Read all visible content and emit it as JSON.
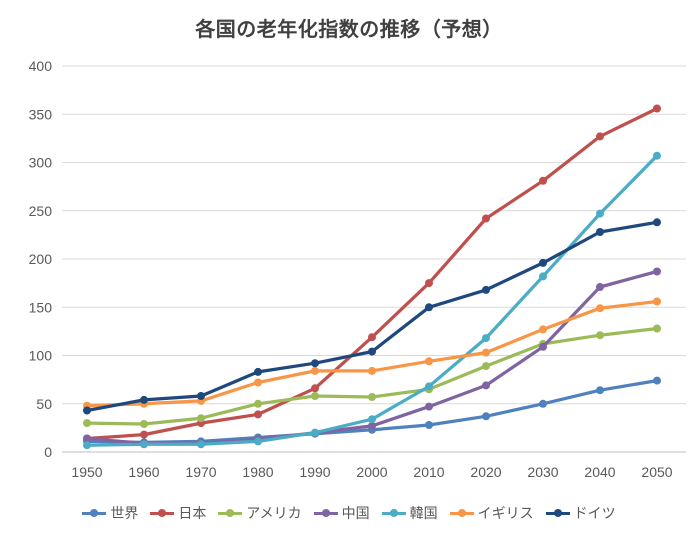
{
  "chart_data": {
    "type": "line",
    "title": "各国の老年化指数の推移（予想）",
    "x": [
      1950,
      1960,
      1970,
      1980,
      1990,
      2000,
      2010,
      2020,
      2030,
      2040,
      2050
    ],
    "series": [
      {
        "id": "world",
        "name": "世界",
        "color": "#4F81BD",
        "values": [
          11,
          10,
          11,
          15,
          19,
          23,
          28,
          37,
          50,
          64,
          74
        ]
      },
      {
        "id": "japan",
        "name": "日本",
        "color": "#C0504D",
        "values": [
          14,
          18,
          30,
          39,
          66,
          119,
          175,
          242,
          281,
          327,
          356
        ]
      },
      {
        "id": "america",
        "name": "アメリカ",
        "color": "#9BBB59",
        "values": [
          30,
          29,
          35,
          50,
          58,
          57,
          65,
          89,
          112,
          121,
          128
        ]
      },
      {
        "id": "china",
        "name": "中国",
        "color": "#8064A2",
        "values": [
          14,
          9,
          9,
          13,
          20,
          27,
          47,
          69,
          109,
          171,
          187
        ]
      },
      {
        "id": "korea",
        "name": "韓国",
        "color": "#4BACC6",
        "values": [
          7,
          8,
          8,
          11,
          20,
          34,
          68,
          118,
          182,
          247,
          307
        ]
      },
      {
        "id": "uk",
        "name": "イギリス",
        "color": "#F79646",
        "values": [
          48,
          50,
          53,
          72,
          84,
          84,
          94,
          103,
          127,
          149,
          156
        ]
      },
      {
        "id": "germany",
        "name": "ドイツ",
        "color": "#1F497D",
        "values": [
          43,
          54,
          58,
          83,
          92,
          104,
          150,
          168,
          196,
          228,
          238
        ]
      }
    ],
    "ylim": [
      0,
      400
    ],
    "ytick_step": 50,
    "grid": true,
    "legend_position": "bottom",
    "colors": {
      "title_text": "#404040",
      "tick_text": "#595959",
      "legend_text": "#595959",
      "gridline": "#D9D9D9",
      "axis_line": "#BFBFBF",
      "background": "#FFFFFF"
    }
  }
}
